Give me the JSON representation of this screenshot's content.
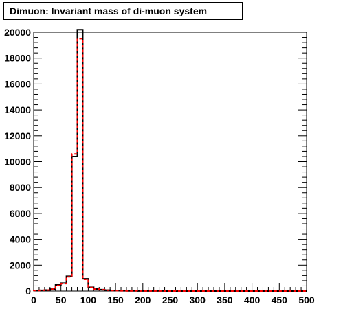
{
  "title": "Dimuon: Invariant mass of di-muon system",
  "chart_data": {
    "type": "histogram",
    "title": "Dimuon: Invariant mass of di-muon system",
    "xlabel": "",
    "ylabel": "",
    "xlim": [
      0,
      500
    ],
    "ylim": [
      0,
      20000
    ],
    "bin_width": 10,
    "x_ticks": [
      0,
      50,
      100,
      150,
      200,
      250,
      300,
      350,
      400,
      450,
      500
    ],
    "y_ticks": [
      0,
      2000,
      4000,
      6000,
      8000,
      10000,
      12000,
      14000,
      16000,
      18000,
      20000
    ],
    "grid": false,
    "series": [
      {
        "style": "solid",
        "color": "#000000",
        "values": [
          40,
          60,
          80,
          150,
          480,
          620,
          1150,
          10400,
          20200,
          950,
          300,
          160,
          110,
          70,
          40,
          30,
          20,
          15,
          10,
          8,
          6,
          5,
          5,
          4,
          3,
          3,
          2,
          2,
          2,
          2,
          2,
          1,
          1,
          1,
          1,
          1,
          1,
          1,
          1,
          1,
          1,
          1,
          1,
          1,
          1,
          1,
          1,
          1,
          1,
          1
        ]
      },
      {
        "style": "dashed",
        "color": "#ff0000",
        "values": [
          40,
          60,
          80,
          150,
          430,
          580,
          1100,
          10600,
          19500,
          900,
          280,
          150,
          100,
          65,
          40,
          30,
          20,
          15,
          10,
          8,
          6,
          5,
          5,
          4,
          3,
          3,
          2,
          2,
          2,
          2,
          2,
          1,
          1,
          1,
          1,
          1,
          1,
          1,
          1,
          1,
          1,
          1,
          1,
          1,
          1,
          1,
          1,
          1,
          1,
          1
        ]
      }
    ]
  }
}
